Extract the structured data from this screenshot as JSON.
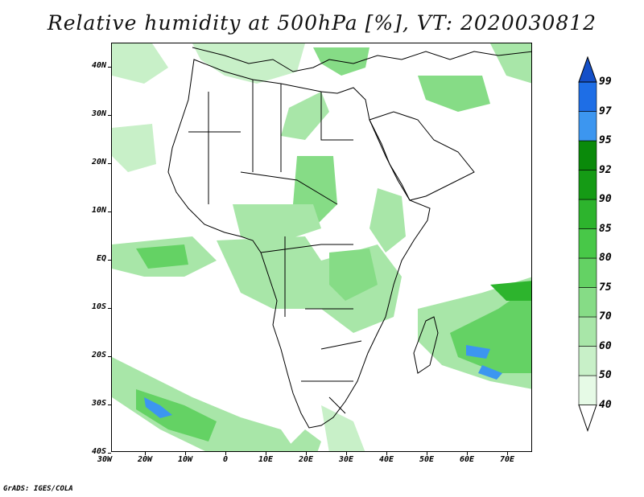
{
  "title": "Relative humidity at 500hPa [%], VT: 2020030812",
  "credit": "GrADS: IGES/COLA",
  "map": {
    "lat_labels": [
      "40N",
      "30N",
      "20N",
      "10N",
      "EQ",
      "10S",
      "20S",
      "30S",
      "40S"
    ],
    "lon_labels": [
      "30W",
      "20W",
      "10W",
      "0",
      "10E",
      "20E",
      "30E",
      "40E",
      "50E",
      "60E",
      "70E"
    ]
  },
  "colorbar": {
    "levels": [
      "40",
      "50",
      "60",
      "70",
      "75",
      "80",
      "85",
      "90",
      "92",
      "95",
      "97",
      "99"
    ],
    "colors": [
      "#ffffff",
      "#e6fae6",
      "#c8f0c8",
      "#a8e6a8",
      "#86dc86",
      "#64d264",
      "#48c848",
      "#2db42d",
      "#159b15",
      "#0a8a0a",
      "#3c96f0",
      "#1e6ee6",
      "#144fc8"
    ]
  }
}
